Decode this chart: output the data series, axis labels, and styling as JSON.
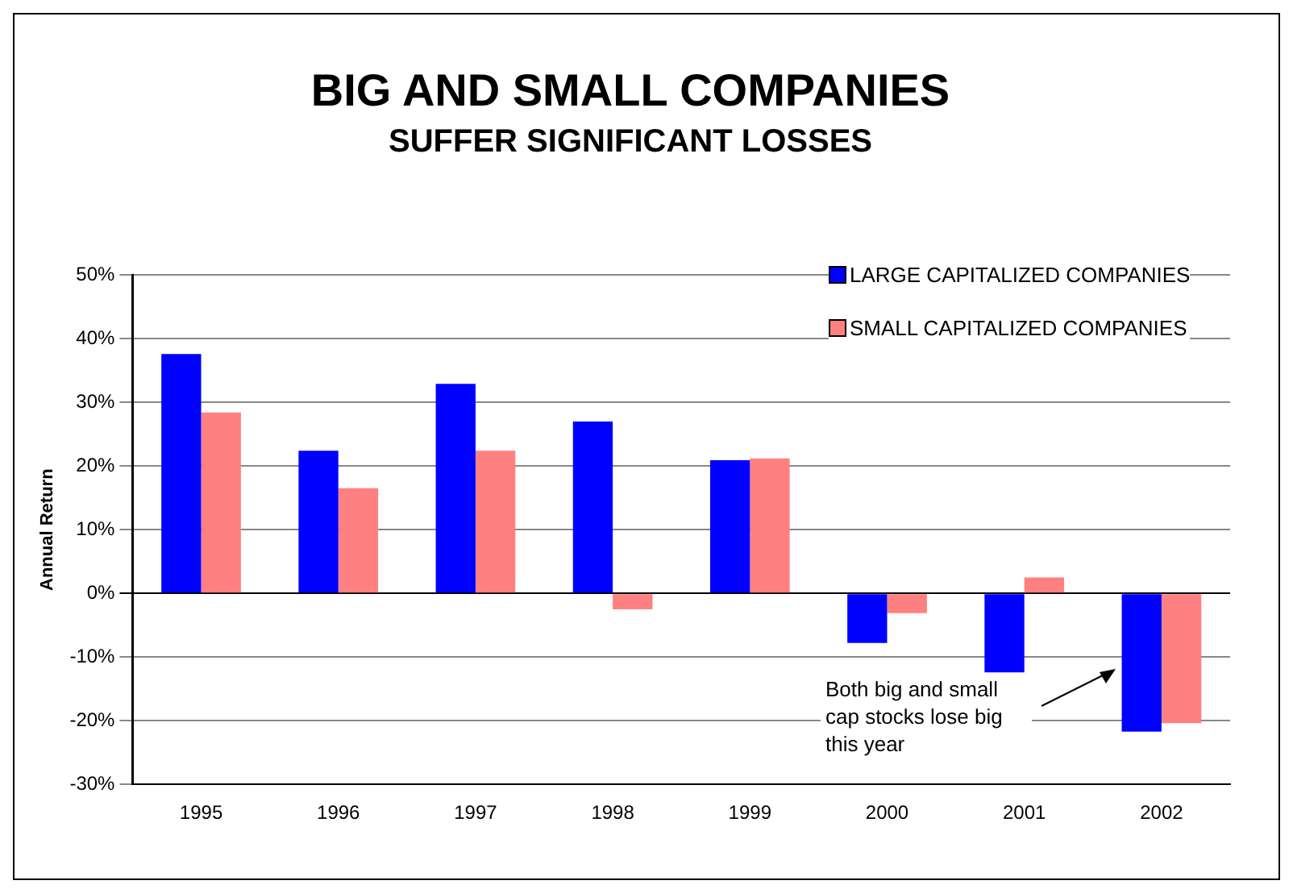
{
  "chart_data": {
    "type": "bar",
    "title": "BIG AND SMALL COMPANIES",
    "subtitle": "SUFFER SIGNIFICANT LOSSES",
    "ylabel": "Annual Return",
    "categories": [
      "1995",
      "1996",
      "1997",
      "1998",
      "1999",
      "2000",
      "2001",
      "2002"
    ],
    "series": [
      {
        "name": "LARGE CAPITALIZED COMPANIES",
        "color": "#0000ff",
        "values": [
          37.6,
          22.4,
          32.9,
          27.0,
          20.9,
          -7.8,
          -12.4,
          -21.7
        ]
      },
      {
        "name": "SMALL CAPITALIZED COMPANIES",
        "color": "#ff8080",
        "values": [
          28.4,
          16.5,
          22.4,
          -2.5,
          21.2,
          -3.1,
          2.5,
          -20.4
        ]
      }
    ],
    "ylim": [
      -30,
      50
    ],
    "yticks": [
      {
        "value": -30,
        "label": "-30%"
      },
      {
        "value": -20,
        "label": "-20%"
      },
      {
        "value": -10,
        "label": "-10%"
      },
      {
        "value": 0,
        "label": "0%"
      },
      {
        "value": 10,
        "label": "10%"
      },
      {
        "value": 20,
        "label": "20%"
      },
      {
        "value": 30,
        "label": "30%"
      },
      {
        "value": 40,
        "label": "40%"
      },
      {
        "value": 50,
        "label": "50%"
      }
    ],
    "grid": "y",
    "legend": "top right",
    "annotations": [
      "Both big and small cap stocks lose big this year"
    ]
  }
}
